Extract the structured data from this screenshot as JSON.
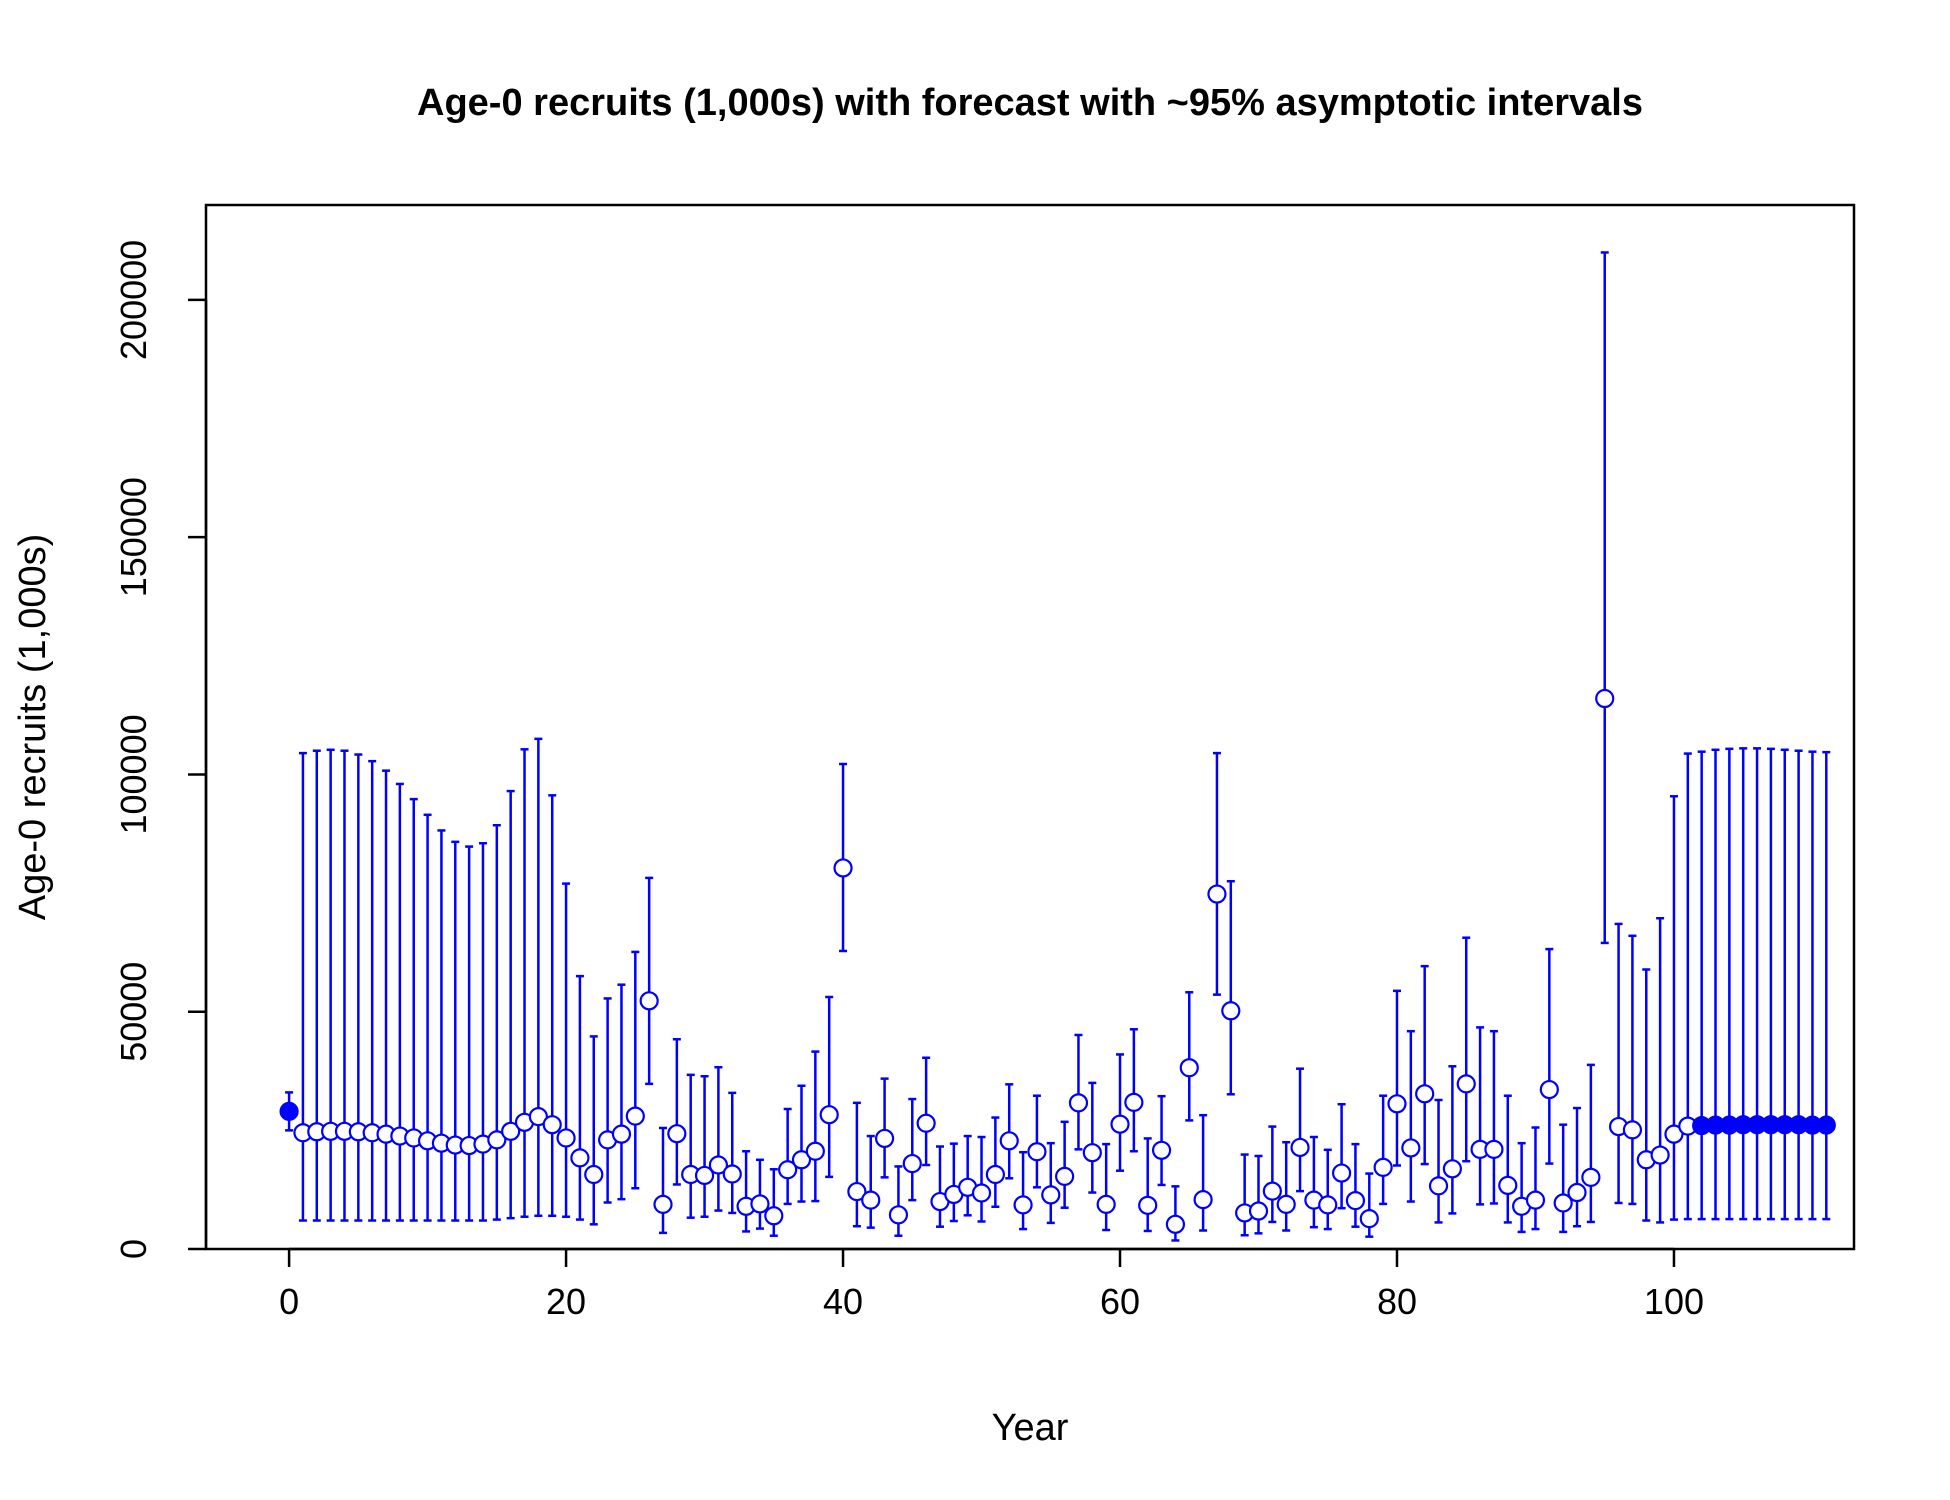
{
  "chart_data": {
    "type": "scatter",
    "title": "Age-0 recruits (1,000s) with forecast with ~95% asymptotic intervals",
    "xlabel": "Year",
    "ylabel": "Age-0 recruits (1,000s)",
    "xlim": [
      -6,
      113
    ],
    "ylim": [
      0,
      220000
    ],
    "x_ticks": [
      0,
      20,
      40,
      60,
      80,
      100
    ],
    "x_tick_labels": [
      "0",
      "20",
      "40",
      "60",
      "80",
      "100"
    ],
    "y_ticks": [
      0,
      50000,
      100000,
      150000,
      200000
    ],
    "y_tick_labels": [
      "0",
      "50000",
      "100000",
      "150000",
      "200000"
    ],
    "grid": false,
    "color": "#0000ff",
    "series": [
      {
        "role": "virgin",
        "marker": "filled-circle",
        "points": [
          [
            0,
            29000,
            25000,
            33000
          ]
        ]
      },
      {
        "role": "estimated",
        "marker": "open-circle",
        "points": [
          [
            1,
            24500,
            6000,
            104500
          ],
          [
            2,
            24700,
            6000,
            105000
          ],
          [
            3,
            24800,
            6000,
            105200
          ],
          [
            4,
            24800,
            6000,
            105000
          ],
          [
            5,
            24700,
            6000,
            104200
          ],
          [
            6,
            24500,
            6000,
            102800
          ],
          [
            7,
            24200,
            6000,
            100800
          ],
          [
            8,
            23800,
            6000,
            98000
          ],
          [
            9,
            23400,
            6000,
            94800
          ],
          [
            10,
            22800,
            6000,
            91500
          ],
          [
            11,
            22300,
            6000,
            88200
          ],
          [
            12,
            21900,
            6000,
            85800
          ],
          [
            13,
            21800,
            6000,
            84800
          ],
          [
            14,
            22100,
            6000,
            85500
          ],
          [
            15,
            23000,
            6200,
            89300
          ],
          [
            16,
            24800,
            6500,
            96500
          ],
          [
            17,
            26700,
            6800,
            105300
          ],
          [
            18,
            27900,
            7000,
            107500
          ],
          [
            19,
            26200,
            7000,
            95600
          ],
          [
            20,
            23400,
            6800,
            77000
          ],
          [
            21,
            19200,
            6200,
            57500
          ],
          [
            22,
            15700,
            5200,
            44800
          ],
          [
            23,
            23000,
            9800,
            52800
          ],
          [
            24,
            24200,
            10500,
            55700
          ],
          [
            25,
            28000,
            12800,
            62600
          ],
          [
            26,
            52300,
            34800,
            78200
          ],
          [
            27,
            9400,
            3400,
            25500
          ],
          [
            28,
            24300,
            13600,
            44200
          ],
          [
            29,
            15700,
            6600,
            36700
          ],
          [
            30,
            15500,
            6800,
            36400
          ],
          [
            31,
            17700,
            8100,
            38300
          ],
          [
            32,
            15800,
            7600,
            32900
          ],
          [
            33,
            9000,
            3700,
            20600
          ],
          [
            34,
            9500,
            4300,
            18800
          ],
          [
            35,
            7000,
            2800,
            16800
          ],
          [
            36,
            16700,
            9500,
            29500
          ],
          [
            37,
            18800,
            10000,
            34400
          ],
          [
            38,
            20600,
            10100,
            41600
          ],
          [
            39,
            28300,
            15200,
            53100
          ],
          [
            40,
            80300,
            62800,
            102200
          ],
          [
            41,
            12100,
            4800,
            30800
          ],
          [
            42,
            10300,
            4500,
            23800
          ],
          [
            43,
            23300,
            15100,
            35900
          ],
          [
            44,
            7200,
            2800,
            17400
          ],
          [
            45,
            18000,
            10300,
            31600
          ],
          [
            46,
            26500,
            17700,
            40300
          ],
          [
            47,
            10000,
            4700,
            21600
          ],
          [
            48,
            11500,
            5900,
            22200
          ],
          [
            49,
            13000,
            7100,
            23800
          ],
          [
            50,
            11800,
            5800,
            23600
          ],
          [
            51,
            15700,
            8900,
            27700
          ],
          [
            52,
            22800,
            14900,
            34700
          ],
          [
            53,
            9300,
            4200,
            20400
          ],
          [
            54,
            20500,
            13000,
            32300
          ],
          [
            55,
            11400,
            5500,
            22300
          ],
          [
            56,
            15300,
            8700,
            26800
          ],
          [
            57,
            30800,
            21000,
            45100
          ],
          [
            58,
            20300,
            11900,
            35000
          ],
          [
            59,
            9400,
            4000,
            22100
          ],
          [
            60,
            26300,
            16500,
            41000
          ],
          [
            61,
            30900,
            20600,
            46300
          ],
          [
            62,
            9200,
            3800,
            23300
          ],
          [
            63,
            20800,
            13500,
            32200
          ],
          [
            64,
            5200,
            1800,
            13200
          ],
          [
            65,
            38200,
            27100,
            54100
          ],
          [
            66,
            10400,
            3900,
            28200
          ],
          [
            67,
            74800,
            53600,
            104500
          ],
          [
            68,
            50200,
            32600,
            77500
          ],
          [
            69,
            7600,
            2900,
            19900
          ],
          [
            70,
            8000,
            3300,
            19600
          ],
          [
            71,
            12200,
            5700,
            25800
          ],
          [
            72,
            9400,
            3900,
            22500
          ],
          [
            73,
            21400,
            12200,
            38000
          ],
          [
            74,
            10300,
            4600,
            23600
          ],
          [
            75,
            9300,
            4200,
            20900
          ],
          [
            76,
            16000,
            8600,
            30500
          ],
          [
            77,
            10200,
            4700,
            22100
          ],
          [
            78,
            6400,
            2600,
            15900
          ],
          [
            79,
            17200,
            9500,
            32300
          ],
          [
            80,
            30600,
            17600,
            54400
          ],
          [
            81,
            21300,
            10000,
            45900
          ],
          [
            82,
            32700,
            17900,
            59600
          ],
          [
            83,
            13300,
            5600,
            31400
          ],
          [
            84,
            16900,
            7500,
            38500
          ],
          [
            85,
            34800,
            18500,
            65600
          ],
          [
            86,
            21000,
            9400,
            46700
          ],
          [
            87,
            21000,
            9600,
            45900
          ],
          [
            88,
            13400,
            5600,
            32300
          ],
          [
            89,
            9000,
            3600,
            22300
          ],
          [
            90,
            10300,
            4200,
            25600
          ],
          [
            91,
            33600,
            18000,
            63200
          ],
          [
            92,
            9700,
            3600,
            26200
          ],
          [
            93,
            11900,
            4800,
            29700
          ],
          [
            94,
            15100,
            5700,
            38800
          ],
          [
            95,
            116000,
            64500,
            210000
          ],
          [
            96,
            25800,
            9700,
            68500
          ],
          [
            97,
            25100,
            9500,
            66000
          ],
          [
            98,
            18800,
            6000,
            58900
          ],
          [
            99,
            19800,
            5600,
            69700
          ],
          [
            100,
            24200,
            6200,
            95400
          ],
          [
            101,
            25900,
            6300,
            104400
          ]
        ]
      },
      {
        "role": "forecast",
        "marker": "filled-circle",
        "points": [
          [
            102,
            26000,
            6300,
            104800
          ],
          [
            103,
            26100,
            6300,
            105200
          ],
          [
            104,
            26100,
            6300,
            105400
          ],
          [
            105,
            26200,
            6300,
            105500
          ],
          [
            106,
            26200,
            6300,
            105500
          ],
          [
            107,
            26200,
            6300,
            105400
          ],
          [
            108,
            26200,
            6300,
            105200
          ],
          [
            109,
            26200,
            6300,
            105000
          ],
          [
            110,
            26100,
            6300,
            104800
          ],
          [
            111,
            26100,
            6300,
            104700
          ]
        ]
      }
    ]
  }
}
